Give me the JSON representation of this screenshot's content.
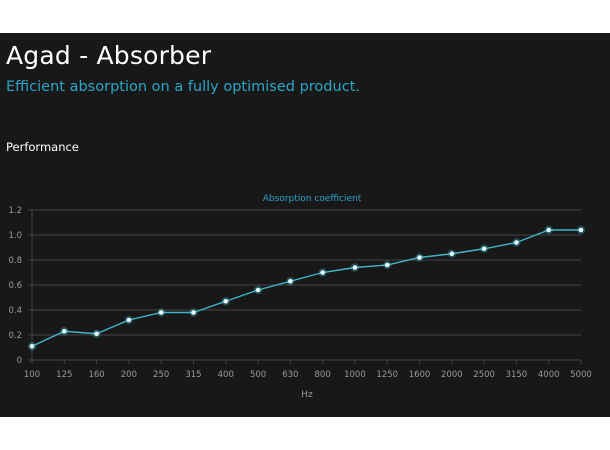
{
  "page": {
    "title": "Agad - Absorber",
    "subtitle": "Efficient absorption on a fully optimised product.",
    "section_label": "Performance"
  },
  "colors": {
    "background": "#181818",
    "accent": "#2aa6c8",
    "line": "#3fb6cc",
    "grid": "#444444",
    "tick_text": "#9a9a9a"
  },
  "chart_data": {
    "type": "line",
    "title": "Absorption coefficient",
    "xlabel": "Hz",
    "ylabel": "",
    "categories": [
      "100",
      "125",
      "160",
      "200",
      "250",
      "315",
      "400",
      "500",
      "630",
      "800",
      "1000",
      "1250",
      "1600",
      "2000",
      "2500",
      "3150",
      "4000",
      "5000"
    ],
    "series": [
      {
        "values": [
          0.11,
          0.23,
          0.21,
          0.32,
          0.38,
          0.38,
          0.47,
          0.56,
          0.63,
          0.7,
          0.74,
          0.76,
          0.82,
          0.85,
          0.89,
          0.94,
          1.04,
          1.04
        ]
      }
    ],
    "yticks": [
      "0",
      "0.2",
      "0.4",
      "0.6",
      "0.8",
      "1.0",
      "1.2"
    ],
    "ylim": [
      0,
      1.2
    ],
    "grid": true,
    "legend": "none"
  }
}
